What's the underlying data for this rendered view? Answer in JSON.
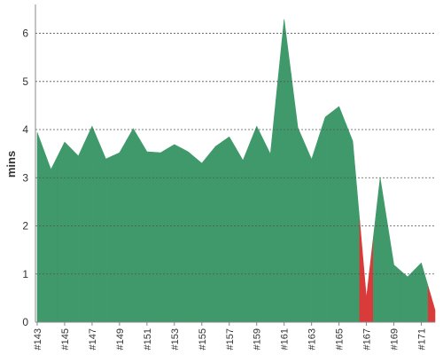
{
  "chart_data": {
    "type": "area",
    "y_label": "mins",
    "categories": [
      "#143",
      null,
      "#145",
      null,
      "#147",
      null,
      "#149",
      null,
      "#151",
      null,
      "#153",
      null,
      "#155",
      null,
      "#157",
      null,
      "#159",
      null,
      "#161",
      null,
      "#163",
      null,
      "#165",
      null,
      "#167",
      null,
      "#169",
      null,
      "#171",
      null
    ],
    "values": [
      3.94,
      3.17,
      3.74,
      3.45,
      4.07,
      3.39,
      3.52,
      4.02,
      3.54,
      3.52,
      3.69,
      3.54,
      3.3,
      3.65,
      3.85,
      3.36,
      4.07,
      3.49,
      6.29,
      4.04,
      3.38,
      4.26,
      4.48,
      3.76,
      0.5,
      3.0,
      1.19,
      0.94,
      1.23,
      0.25
    ],
    "colors": [
      "#40996a",
      "#40996a",
      "#40996a",
      "#40996a",
      "#40996a",
      "#40996a",
      "#40996a",
      "#40996a",
      "#40996a",
      "#40996a",
      "#40996a",
      "#40996a",
      "#40996a",
      "#40996a",
      "#40996a",
      "#40996a",
      "#40996a",
      "#40996a",
      "#40996a",
      "#40996a",
      "#40996a",
      "#40996a",
      "#40996a",
      "#40996a",
      "#d93a3a",
      "#40996a",
      "#40996a",
      "#40996a",
      "#40996a",
      "#d93a3a"
    ],
    "ylim": [
      0,
      6.6
    ],
    "yticks": [
      0,
      1,
      2,
      3,
      4,
      5,
      6
    ],
    "grid": true
  }
}
